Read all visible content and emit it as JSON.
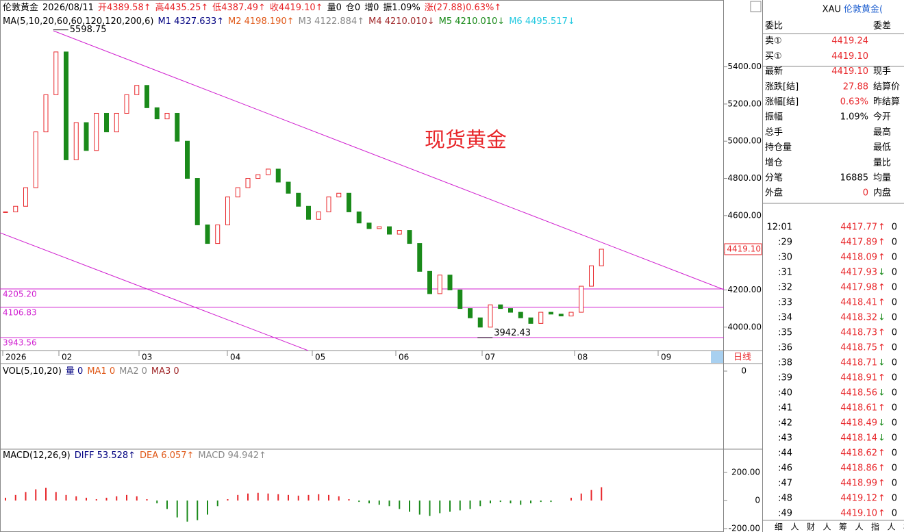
{
  "header": {
    "items": [
      {
        "text": "伦敦黄金",
        "color": "#000000"
      },
      {
        "text": "2026/08/11",
        "color": "#000000"
      },
      {
        "text": "开4389.58↑",
        "color": "#e8262a"
      },
      {
        "text": "高4435.25↑",
        "color": "#e8262a"
      },
      {
        "text": "低4387.49↑",
        "color": "#e8262a"
      },
      {
        "text": "收4419.10↑",
        "color": "#e8262a"
      },
      {
        "text": "量0",
        "color": "#000000"
      },
      {
        "text": "仓0",
        "color": "#000000"
      },
      {
        "text": "增0",
        "color": "#000000"
      },
      {
        "text": "振1.09%",
        "color": "#000000"
      },
      {
        "text": "涨(27.88)0.63%↑",
        "color": "#e8262a"
      }
    ]
  },
  "ma_legend": {
    "items": [
      {
        "text": "MA(5,10,20,60,60,120,120,200,6)",
        "color": "#000000"
      },
      {
        "text": "M1 4327.633↑",
        "color": "#000080"
      },
      {
        "text": "M2 4198.190↑",
        "color": "#e05a1a"
      },
      {
        "text": "M3 4122.884↑",
        "color": "#888888"
      },
      {
        "text": "M4 4210.010↓",
        "color": "#a0282a"
      },
      {
        "text": "M5 4210.010↓",
        "color": "#1a8a1a"
      },
      {
        "text": "M6 4495.517↓",
        "color": "#20c8e0"
      }
    ]
  },
  "chart_data": {
    "type": "candlestick",
    "title": "现货黄金",
    "values": [
      4620,
      4650,
      4750,
      5050,
      5250,
      5480,
      4900,
      5100,
      4950,
      5150,
      5050,
      5150,
      5250,
      5300,
      5180,
      5120,
      5150,
      5000,
      4800,
      4550,
      4450,
      4550,
      4700,
      4750,
      4800,
      4820,
      4850,
      4780,
      4720,
      4650,
      4580,
      4620,
      4700,
      4720,
      4620,
      4560,
      4530,
      4540,
      4500,
      4520,
      4450,
      4300,
      4180,
      4280,
      4200,
      4100,
      4050,
      4000,
      4120,
      4100,
      4080,
      4050,
      4020,
      4080,
      4070,
      4060,
      4080,
      4220,
      4330,
      4419.1
    ],
    "ylim": [
      3874,
      5752
    ],
    "yticks": [
      {
        "value": 5400,
        "label": "5400.00"
      },
      {
        "value": 5200,
        "label": "5200.00"
      },
      {
        "value": 5000,
        "label": "5000.00"
      },
      {
        "value": 4800,
        "label": "4800.00"
      },
      {
        "value": 4600,
        "label": "4600.00"
      },
      {
        "value": 4400,
        "label": "4400.00"
      },
      {
        "value": 4200,
        "label": "4200.00"
      },
      {
        "value": 4000,
        "label": "4000.00"
      }
    ],
    "levels": [
      {
        "value": 4205.2,
        "label": "4205.20"
      },
      {
        "value": 4106.83,
        "label": "4106.83"
      },
      {
        "value": 3943.56,
        "label": "3943.56"
      }
    ],
    "annotations": [
      {
        "value": 5598.75,
        "label": "5598.75"
      },
      {
        "value": 3942.43,
        "label": "3942.43"
      }
    ],
    "last_price": {
      "value": 4419.1,
      "label": "4419.10"
    },
    "x_labels": [
      "2026",
      "02",
      "03",
      "04",
      "05",
      "06",
      "07",
      "08",
      "09"
    ],
    "period": "日线",
    "up_color": "#e8262a",
    "down_color": "#1a8a1a"
  },
  "volume": {
    "legend": [
      {
        "text": "VOL(5,10,20)",
        "color": "#000000"
      },
      {
        "text": "量 0",
        "color": "#000080"
      },
      {
        "text": "MA1 0",
        "color": "#e05a1a"
      },
      {
        "text": "MA2 0",
        "color": "#888888"
      },
      {
        "text": "MA3 0",
        "color": "#a0282a"
      }
    ],
    "yticks": [
      0
    ]
  },
  "macd": {
    "type": "bar",
    "legend": [
      {
        "text": "MACD(12,26,9)",
        "color": "#000000"
      },
      {
        "text": "DIFF 53.528↑",
        "color": "#000080"
      },
      {
        "text": "DEA 6.057↑",
        "color": "#e05a1a"
      },
      {
        "text": "MACD 94.942↑",
        "color": "#888888"
      }
    ],
    "values": [
      20,
      40,
      60,
      80,
      90,
      60,
      40,
      30,
      20,
      10,
      20,
      30,
      40,
      30,
      10,
      -20,
      -60,
      -120,
      -150,
      -140,
      -100,
      -40,
      10,
      40,
      50,
      55,
      50,
      45,
      40,
      35,
      40,
      45,
      40,
      30,
      10,
      -10,
      -20,
      -30,
      -40,
      -60,
      -80,
      -100,
      -110,
      -90,
      -80,
      -70,
      -60,
      -40,
      -20,
      -10,
      -20,
      -30,
      -20,
      -10,
      -10,
      0,
      20,
      50,
      75,
      94.942
    ],
    "ylim": [
      -224,
      361
    ],
    "yticks": [
      {
        "value": 200,
        "label": "200.00"
      },
      0,
      {
        "value": -200,
        "label": "-200.00"
      }
    ]
  },
  "quote": {
    "symbol": "XAU",
    "name": "伦敦黄金(",
    "rows": [
      {
        "left": "委比",
        "right": "委差"
      },
      {
        "left": "卖①",
        "value": "4419.24",
        "value_color": "#e8262a"
      },
      {
        "left": "买①",
        "value": "4419.10",
        "value_color": "#e8262a"
      },
      {
        "left": "最新",
        "value": "4419.10",
        "value_color": "#e8262a",
        "right": "现手"
      },
      {
        "left": "涨跌[结]",
        "value": "27.88",
        "value_color": "#e8262a",
        "right": "结算价"
      },
      {
        "left": "涨幅[结]",
        "value": "0.63%",
        "value_color": "#e8262a",
        "right": "昨结算"
      },
      {
        "left": "振幅",
        "value": "1.09%",
        "value_color": "#000000",
        "right": "今开"
      },
      {
        "left": "总手",
        "right": "最高"
      },
      {
        "left": "持仓量",
        "right": "最低"
      },
      {
        "left": "增仓",
        "right": "量比"
      },
      {
        "left": "分笔",
        "value": "16885",
        "value_color": "#000000",
        "right": "均量"
      },
      {
        "left": "外盘",
        "value": "0",
        "value_color": "#e8262a",
        "right": "内盘"
      }
    ]
  },
  "ticks": {
    "rows": [
      [
        "12:01",
        "4417.77",
        "↑",
        "0"
      ],
      [
        ":29",
        "4417.89",
        "↑",
        "0"
      ],
      [
        ":30",
        "4418.09",
        "↑",
        "0"
      ],
      [
        ":31",
        "4417.93",
        "↓",
        "0"
      ],
      [
        ":32",
        "4417.98",
        "↑",
        "0"
      ],
      [
        ":33",
        "4418.41",
        "↑",
        "0"
      ],
      [
        ":34",
        "4418.32",
        "↓",
        "0"
      ],
      [
        ":35",
        "4418.73",
        "↑",
        "0"
      ],
      [
        ":36",
        "4418.75",
        "↑",
        "0"
      ],
      [
        ":38",
        "4418.71",
        "↓",
        "0"
      ],
      [
        ":39",
        "4418.91",
        "↑",
        "0"
      ],
      [
        ":40",
        "4418.56",
        "↓",
        "0"
      ],
      [
        ":41",
        "4418.61",
        "↑",
        "0"
      ],
      [
        ":42",
        "4418.49",
        "↓",
        "0"
      ],
      [
        ":43",
        "4418.14",
        "↓",
        "0"
      ],
      [
        ":44",
        "4418.62",
        "↑",
        "0"
      ],
      [
        ":46",
        "4418.86",
        "↑",
        "0"
      ],
      [
        ":47",
        "4418.99",
        "↑",
        "0"
      ],
      [
        ":48",
        "4419.12",
        "↑",
        "0"
      ],
      [
        ":49",
        "4419.10",
        "↑",
        "0"
      ]
    ]
  },
  "tabs": [
    "细",
    "人",
    "财",
    "人",
    "筹",
    "人",
    "指",
    "人",
    "板"
  ]
}
